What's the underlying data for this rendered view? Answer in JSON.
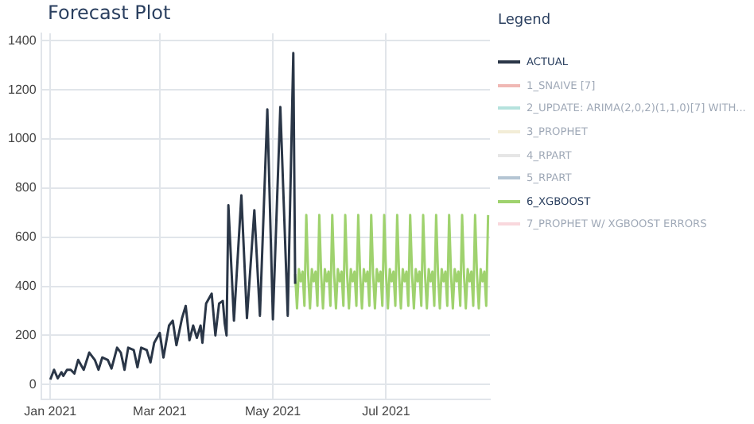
{
  "chart_data": {
    "type": "line",
    "title": "Forecast Plot",
    "legend_title": "Legend",
    "legend": "right",
    "grid": true,
    "marker": "none",
    "line_style": "solid",
    "xlim": [
      "2020-12-27",
      "2021-08-26"
    ],
    "xticks": [
      {
        "value": "2021-01-01",
        "label": "Jan 2021"
      },
      {
        "value": "2021-03-01",
        "label": "Mar 2021"
      },
      {
        "value": "2021-05-01",
        "label": "May 2021"
      },
      {
        "value": "2021-07-01",
        "label": "Jul 2021"
      }
    ],
    "ylim": [
      -60,
      1430
    ],
    "yticks": [
      0,
      200,
      400,
      600,
      800,
      1000,
      1200,
      1400
    ],
    "series": [
      {
        "name": "ACTUAL",
        "color": "#2a3647",
        "x": [
          "2021-01-01",
          "2021-01-03",
          "2021-01-05",
          "2021-01-07",
          "2021-01-08",
          "2021-01-10",
          "2021-01-12",
          "2021-01-14",
          "2021-01-16",
          "2021-01-19",
          "2021-01-22",
          "2021-01-25",
          "2021-01-27",
          "2021-01-29",
          "2021-02-01",
          "2021-02-03",
          "2021-02-06",
          "2021-02-08",
          "2021-02-10",
          "2021-02-12",
          "2021-02-15",
          "2021-02-17",
          "2021-02-19",
          "2021-02-22",
          "2021-02-24",
          "2021-02-26",
          "2021-03-01",
          "2021-03-03",
          "2021-03-06",
          "2021-03-08",
          "2021-03-10",
          "2021-03-13",
          "2021-03-15",
          "2021-03-17",
          "2021-03-19",
          "2021-03-21",
          "2021-03-23",
          "2021-03-24",
          "2021-03-26",
          "2021-03-29",
          "2021-03-31",
          "2021-04-02",
          "2021-04-04",
          "2021-04-05",
          "2021-04-06",
          "2021-04-07",
          "2021-04-10",
          "2021-04-14",
          "2021-04-17",
          "2021-04-21",
          "2021-04-24",
          "2021-04-28",
          "2021-05-01",
          "2021-05-05",
          "2021-05-09",
          "2021-05-12",
          "2021-05-13"
        ],
        "values": [
          20,
          60,
          25,
          50,
          35,
          60,
          60,
          45,
          100,
          60,
          130,
          100,
          60,
          110,
          100,
          65,
          150,
          130,
          60,
          150,
          140,
          70,
          150,
          140,
          90,
          170,
          210,
          110,
          240,
          260,
          160,
          270,
          320,
          180,
          240,
          190,
          240,
          170,
          330,
          370,
          200,
          330,
          340,
          250,
          200,
          730,
          260,
          770,
          270,
          710,
          280,
          1120,
          265,
          1130,
          280,
          1350,
          410
        ]
      },
      {
        "name": "1_SNAIVE [7]",
        "color": "#e0635a"
      },
      {
        "name": "2_UPDATE: ARIMA(2,0,2)(1,1,0)[7] WITH...",
        "color": "#5cc0b5"
      },
      {
        "name": "3_PROPHET",
        "color": "#e6d8a8"
      },
      {
        "name": "4_RPART",
        "color": "#c8c8c8"
      },
      {
        "name": "5_RPART",
        "color": "#5b7fa0"
      },
      {
        "name": "6_XGBOOST",
        "color": "#9fd26e",
        "x": [
          "2021-05-13",
          "2021-05-14",
          "2021-05-15",
          "2021-05-16",
          "2021-05-17",
          "2021-05-18",
          "2021-05-19",
          "2021-05-20",
          "2021-05-21",
          "2021-05-22",
          "2021-05-23",
          "2021-05-24",
          "2021-05-25",
          "2021-05-26",
          "2021-05-27",
          "2021-05-28",
          "2021-05-29",
          "2021-05-30",
          "2021-05-31",
          "2021-06-01",
          "2021-06-02",
          "2021-06-03",
          "2021-06-04",
          "2021-06-05",
          "2021-06-06",
          "2021-06-07",
          "2021-06-08",
          "2021-06-09",
          "2021-06-10",
          "2021-06-11",
          "2021-06-12",
          "2021-06-13",
          "2021-06-14",
          "2021-06-15",
          "2021-06-16",
          "2021-06-17",
          "2021-06-18",
          "2021-06-19",
          "2021-06-20",
          "2021-06-21",
          "2021-06-22",
          "2021-06-23",
          "2021-06-24",
          "2021-06-25",
          "2021-06-26",
          "2021-06-27",
          "2021-06-28",
          "2021-06-29",
          "2021-06-30",
          "2021-07-01",
          "2021-07-02",
          "2021-07-03",
          "2021-07-04",
          "2021-07-05",
          "2021-07-06",
          "2021-07-07",
          "2021-07-08",
          "2021-07-09",
          "2021-07-10",
          "2021-07-11",
          "2021-07-12",
          "2021-07-13",
          "2021-07-14",
          "2021-07-15",
          "2021-07-16",
          "2021-07-17",
          "2021-07-18",
          "2021-07-19",
          "2021-07-20",
          "2021-07-21",
          "2021-07-22",
          "2021-07-23",
          "2021-07-24",
          "2021-07-25",
          "2021-07-26",
          "2021-07-27",
          "2021-07-28",
          "2021-07-29",
          "2021-07-30",
          "2021-07-31",
          "2021-08-01",
          "2021-08-02",
          "2021-08-03",
          "2021-08-04",
          "2021-08-05",
          "2021-08-06",
          "2021-08-07",
          "2021-08-08",
          "2021-08-09",
          "2021-08-10",
          "2021-08-11",
          "2021-08-12",
          "2021-08-13",
          "2021-08-14",
          "2021-08-15",
          "2021-08-16",
          "2021-08-17",
          "2021-08-18",
          "2021-08-19",
          "2021-08-20",
          "2021-08-21",
          "2021-08-22",
          "2021-08-23",
          "2021-08-24",
          "2021-08-25"
        ],
        "values": [
          450,
          310,
          470,
          420,
          460,
          320,
          690,
          450,
          310,
          470,
          420,
          460,
          320,
          690,
          450,
          310,
          470,
          420,
          460,
          320,
          690,
          450,
          310,
          470,
          420,
          460,
          320,
          690,
          450,
          310,
          470,
          420,
          460,
          320,
          690,
          450,
          310,
          470,
          420,
          460,
          320,
          690,
          450,
          310,
          470,
          420,
          460,
          320,
          690,
          450,
          310,
          470,
          420,
          460,
          320,
          690,
          450,
          310,
          470,
          420,
          460,
          320,
          690,
          450,
          310,
          470,
          420,
          460,
          320,
          690,
          450,
          310,
          470,
          420,
          460,
          320,
          690,
          450,
          310,
          470,
          420,
          460,
          320,
          690,
          450,
          310,
          470,
          420,
          460,
          320,
          690,
          450,
          310,
          470,
          420,
          460,
          320,
          690,
          450,
          310,
          470,
          420,
          460,
          320,
          690
        ]
      },
      {
        "name": "7_PROPHET W/ XGBOOST ERRORS",
        "color": "#f2a9b4"
      }
    ]
  }
}
